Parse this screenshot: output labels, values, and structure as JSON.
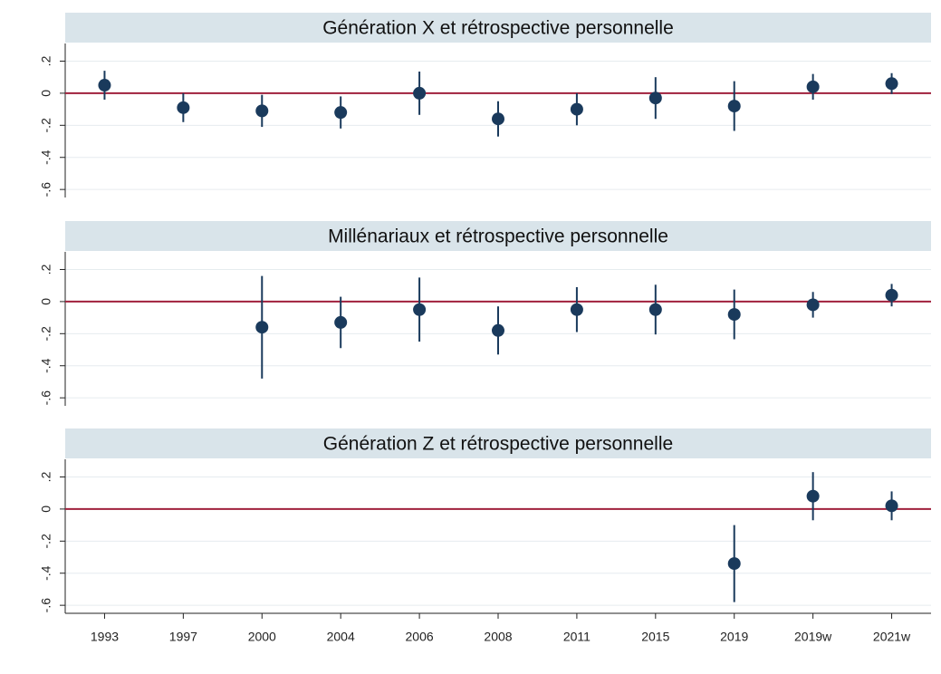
{
  "chart_data": [
    {
      "type": "errorbar",
      "title": "Génération X et rétrospective personnelle",
      "values": [
        0.05,
        -0.09,
        -0.11,
        -0.12,
        0,
        -0.16,
        -0.1,
        -0.03,
        -0.08,
        0.04,
        0.06
      ],
      "errors": [
        0.09,
        0.09,
        0.1,
        0.1,
        0.135,
        0.11,
        0.1,
        0.13,
        0.155,
        0.08,
        0.065
      ],
      "color": "#1a3a5c",
      "reference_line": 0,
      "reference_color": "#a0203c",
      "ylim": [
        -0.65,
        0.31
      ],
      "yticks": [
        {
          "value": 0.2,
          "label": ".2"
        },
        0,
        {
          "value": -0.2,
          "label": "-.2"
        },
        {
          "value": -0.4,
          "label": "-.4"
        },
        {
          "value": -0.6,
          "label": "-.6"
        }
      ],
      "grid": true
    },
    {
      "type": "errorbar",
      "title": "Millénariaux et rétrospective personnelle",
      "values": [
        null,
        null,
        -0.16,
        -0.13,
        -0.05,
        -0.18,
        -0.05,
        -0.05,
        -0.08,
        -0.02,
        0.04
      ],
      "errors": [
        null,
        null,
        0.32,
        0.16,
        0.2,
        0.15,
        0.14,
        0.155,
        0.155,
        0.08,
        0.07
      ],
      "color": "#1a3a5c",
      "reference_line": 0,
      "reference_color": "#a0203c",
      "ylim": [
        -0.65,
        0.31
      ],
      "yticks": [
        {
          "value": 0.2,
          "label": ".2"
        },
        0,
        {
          "value": -0.2,
          "label": "-.2"
        },
        {
          "value": -0.4,
          "label": "-.4"
        },
        {
          "value": -0.6,
          "label": "-.6"
        }
      ],
      "grid": true
    },
    {
      "type": "errorbar",
      "title": "Génération Z et rétrospective personnelle",
      "categories": [
        "1993",
        "1997",
        "2000",
        "2004",
        "2006",
        "2008",
        "2011",
        "2015",
        "2019",
        "2019w",
        "2021w"
      ],
      "values": [
        null,
        null,
        null,
        null,
        null,
        null,
        null,
        null,
        -0.34,
        0.08,
        0.02
      ],
      "errors": [
        null,
        null,
        null,
        null,
        null,
        null,
        null,
        null,
        0.24,
        0.15,
        0.09
      ],
      "color": "#1a3a5c",
      "reference_line": 0,
      "reference_color": "#a0203c",
      "ylim": [
        -0.65,
        0.31
      ],
      "yticks": [
        {
          "value": 0.2,
          "label": ".2"
        },
        0,
        {
          "value": -0.2,
          "label": "-.2"
        },
        {
          "value": -0.4,
          "label": "-.4"
        },
        {
          "value": -0.6,
          "label": "-.6"
        }
      ],
      "grid": true
    }
  ]
}
